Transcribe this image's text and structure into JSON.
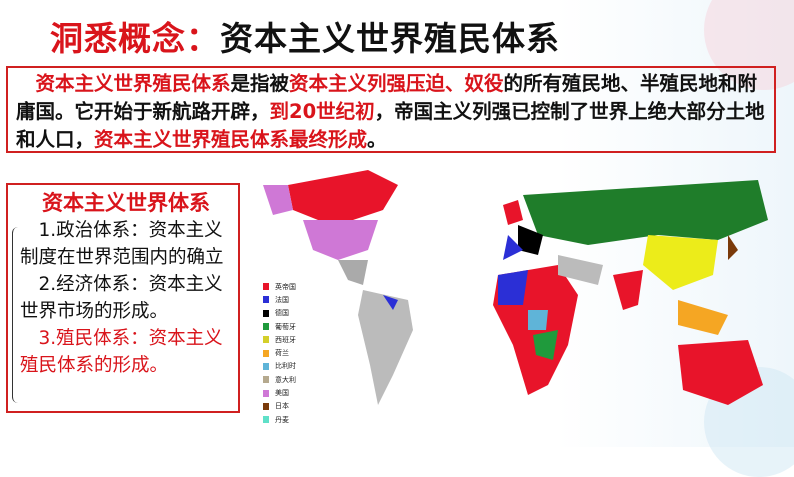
{
  "title": {
    "part1": "洞悉概念：",
    "part2": "资本主义世界殖民体系"
  },
  "definition": {
    "s1": "资本主义世界殖民体系",
    "s2": "是指被",
    "s3": "资本主义列强压迫、奴役",
    "s4": "的所有殖民地、半殖民地和附庸国。它开始于新航路开辟，",
    "s5": "到20世纪初",
    "s6": "，帝国主义列强已控制了世界上绝大部分土地和人口，",
    "s7": "资本主义世界殖民体系最终形成",
    "s8": "。"
  },
  "system": {
    "heading": "资本主义世界体系",
    "item1": "1.政治体系：资本主义制度在世界范围内的确立",
    "item2": "2.经济体系：资本主义世界市场的形成。",
    "item3": "3.殖民体系：资本主义殖民体系的形成。"
  },
  "legend": [
    {
      "label": "英帝国",
      "color": "#e8142a"
    },
    {
      "label": "法国",
      "color": "#2b2fd6"
    },
    {
      "label": "德国",
      "color": "#000000"
    },
    {
      "label": "葡萄牙",
      "color": "#1f9a3c"
    },
    {
      "label": "西班牙",
      "color": "#d4cf2a"
    },
    {
      "label": "荷兰",
      "color": "#f5a623"
    },
    {
      "label": "比利时",
      "color": "#5fb4d8"
    },
    {
      "label": "意大利",
      "color": "#b5a98e"
    },
    {
      "label": "美国",
      "color": "#cf78d6"
    },
    {
      "label": "日本",
      "color": "#7a3a0a"
    },
    {
      "label": "丹麦",
      "color": "#5fe0c8"
    }
  ]
}
